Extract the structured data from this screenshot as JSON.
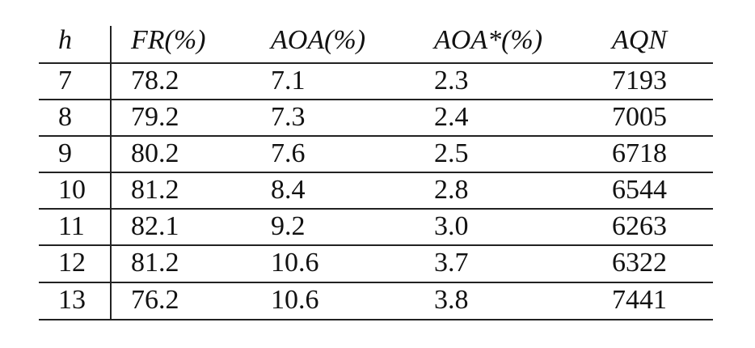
{
  "table": {
    "header": [
      "h",
      "FR(%)",
      "AOA(%)",
      "AOA*(%)",
      "AQN"
    ],
    "rows": [
      [
        "7",
        "78.2",
        "7.1",
        "2.3",
        "7193"
      ],
      [
        "8",
        "79.2",
        "7.3",
        "2.4",
        "7005"
      ],
      [
        "9",
        "80.2",
        "7.6",
        "2.5",
        "6718"
      ],
      [
        "10",
        "81.2",
        "8.4",
        "2.8",
        "6544"
      ],
      [
        "11",
        "82.1",
        "9.2",
        "3.0",
        "6263"
      ],
      [
        "12",
        "81.2",
        "10.6",
        "3.7",
        "6322"
      ],
      [
        "13",
        "76.2",
        "10.6",
        "3.8",
        "7441"
      ]
    ]
  }
}
